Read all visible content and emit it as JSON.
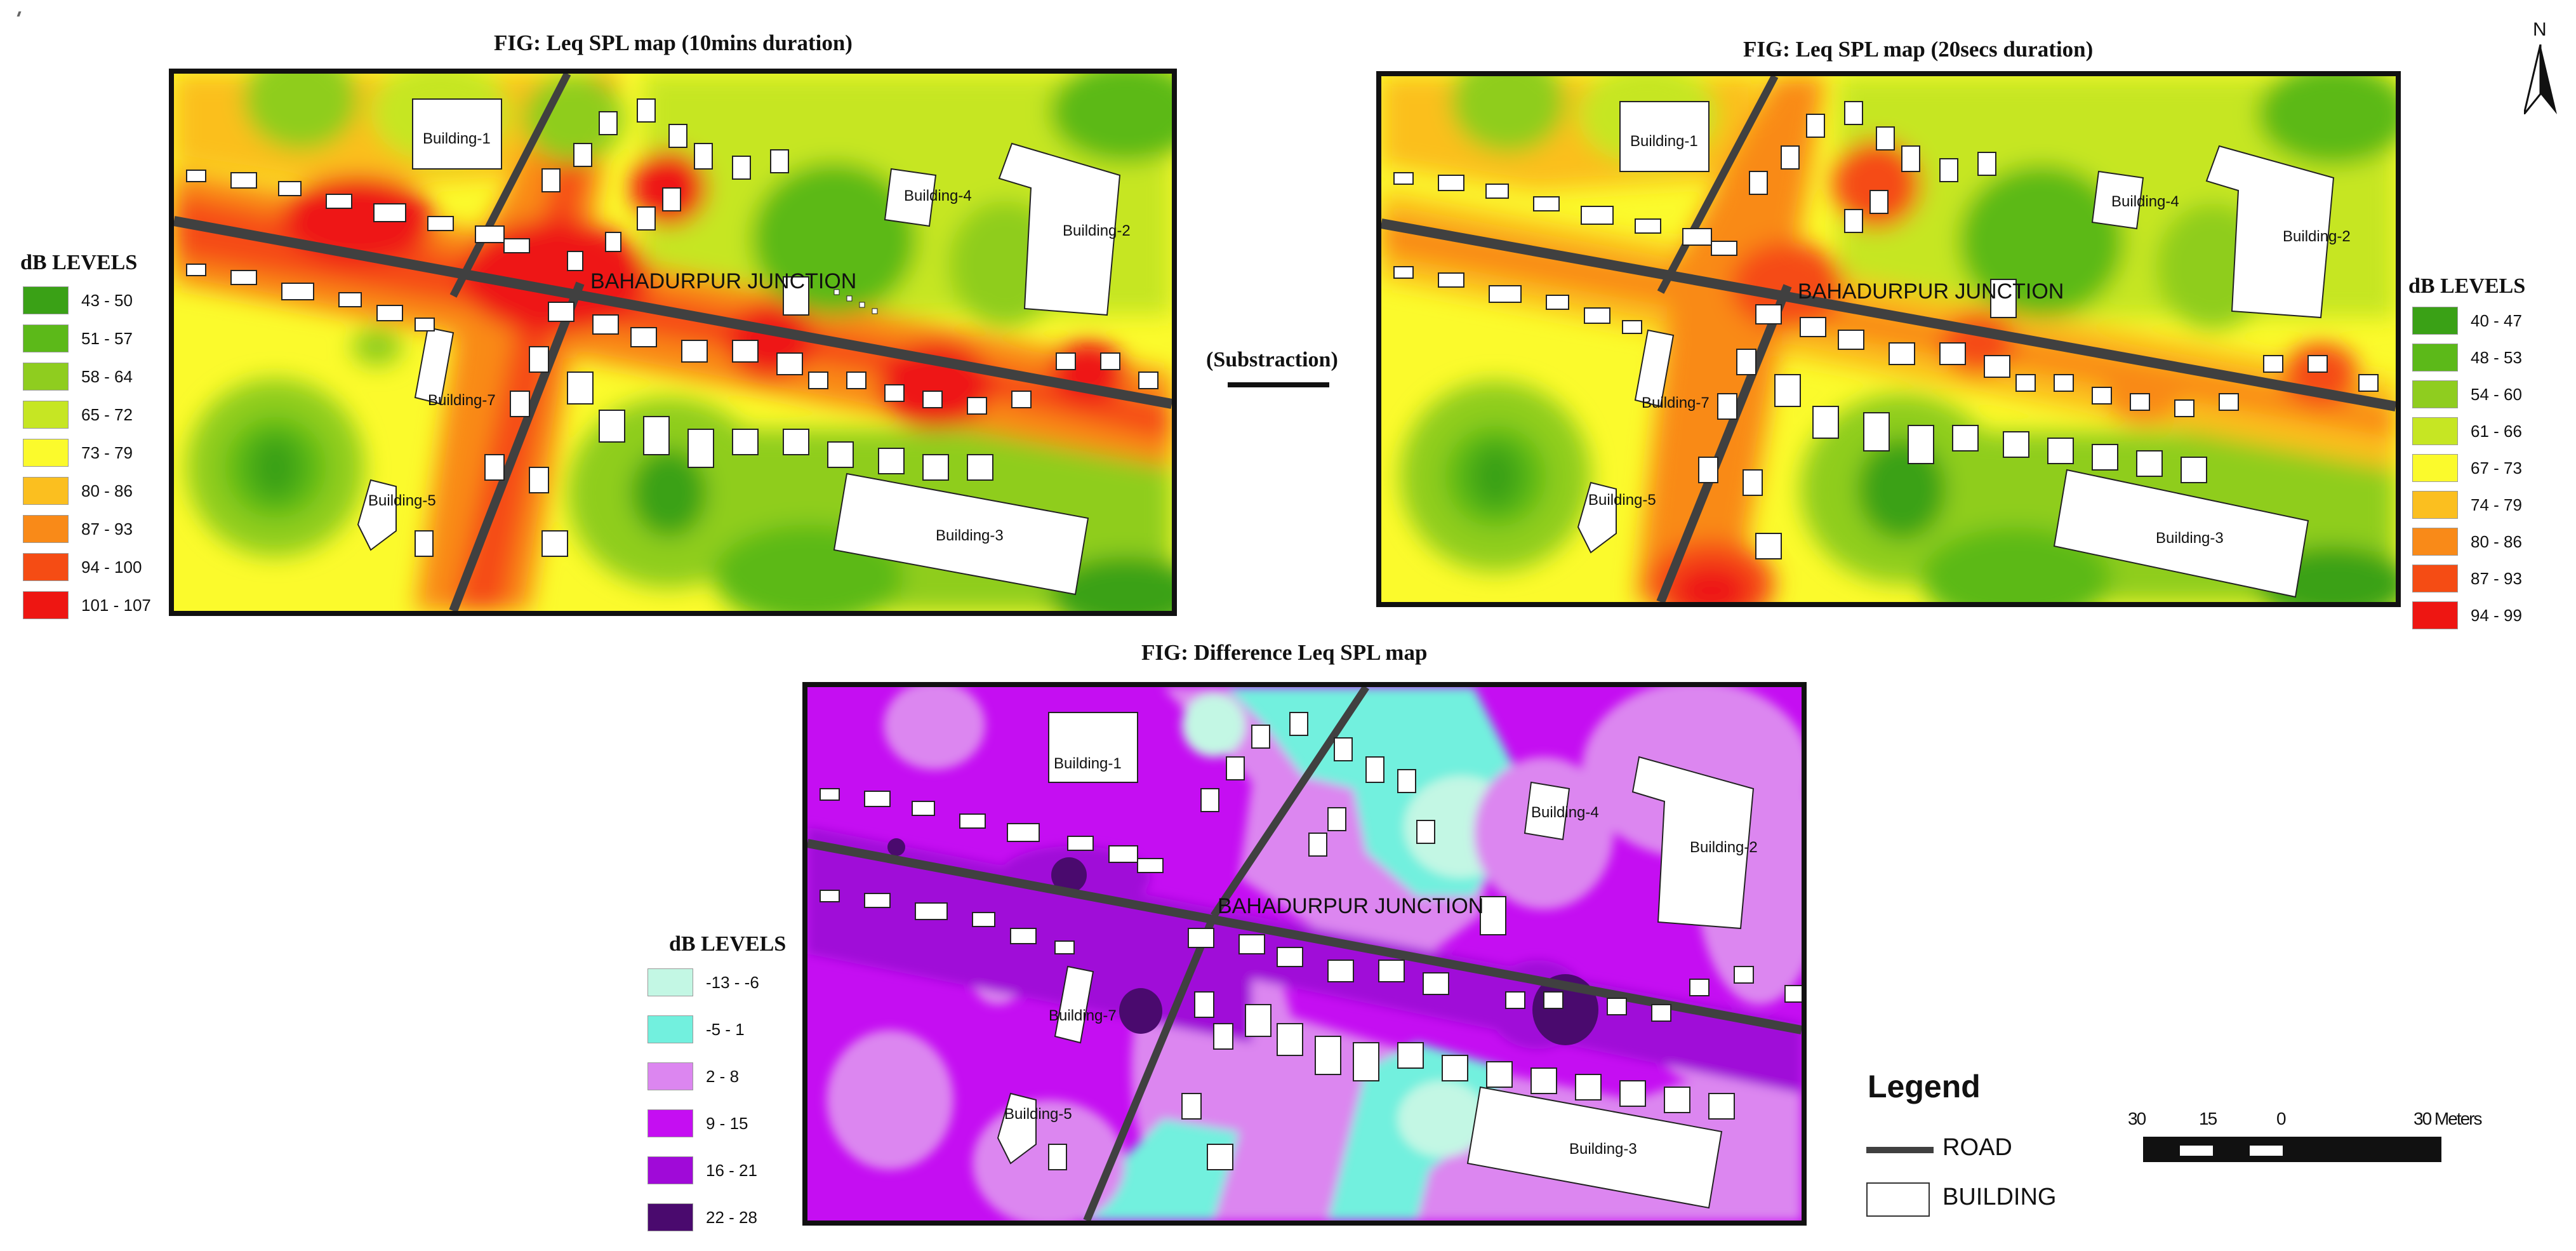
{
  "figures": {
    "map1_title": "FIG: Leq SPL map (10mins duration)",
    "map2_title": "FIG: Leq SPL map (20secs duration)",
    "diff_title": "FIG: Difference Leq SPL map",
    "subtraction_label": "(Substraction)"
  },
  "map_labels": {
    "junction": "BAHADURPUR JUNCTION",
    "building1": "Building-1",
    "building2": "Building-2",
    "building3": "Building-3",
    "building4": "Building-4",
    "building5": "Building-5",
    "building7": "Building-7"
  },
  "legend1": {
    "title": "dB LEVELS",
    "items": [
      {
        "label": "43 - 50",
        "color": "#3aa116"
      },
      {
        "label": "51 - 57",
        "color": "#5cb919"
      },
      {
        "label": "58 - 64",
        "color": "#8fcd1f"
      },
      {
        "label": "65 - 72",
        "color": "#c6e623"
      },
      {
        "label": "73 - 79",
        "color": "#fbfa2c"
      },
      {
        "label": "80 - 86",
        "color": "#fbbf1f"
      },
      {
        "label": "87 - 93",
        "color": "#f98a18"
      },
      {
        "label": "94 - 100",
        "color": "#f54c14"
      },
      {
        "label": "101 - 107",
        "color": "#ee1612"
      }
    ]
  },
  "legend2": {
    "title": "dB LEVELS",
    "items": [
      {
        "label": "40 - 47",
        "color": "#3aa116"
      },
      {
        "label": "48 - 53",
        "color": "#5cb919"
      },
      {
        "label": "54 - 60",
        "color": "#8fcd1f"
      },
      {
        "label": "61 - 66",
        "color": "#c6e623"
      },
      {
        "label": "67 - 73",
        "color": "#fbfa2c"
      },
      {
        "label": "74 - 79",
        "color": "#fbbf1f"
      },
      {
        "label": "80 - 86",
        "color": "#f98a18"
      },
      {
        "label": "87 - 93",
        "color": "#f54c14"
      },
      {
        "label": "94 - 99",
        "color": "#ee1612"
      }
    ]
  },
  "legend3": {
    "title": "dB LEVELS",
    "items": [
      {
        "label": "-13 - -6",
        "color": "#c3f7e4"
      },
      {
        "label": "-5 - 1",
        "color": "#72f0de"
      },
      {
        "label": "2 - 8",
        "color": "#dc86f0"
      },
      {
        "label": "9 - 15",
        "color": "#c50ef2"
      },
      {
        "label": "16 - 21",
        "color": "#a00ad8"
      },
      {
        "label": "22 - 28",
        "color": "#4a0a6e"
      }
    ]
  },
  "legend_main": {
    "title": "Legend",
    "road": "ROAD",
    "building": "BUILDING"
  },
  "scale_bar": {
    "ticks": [
      "30",
      "15",
      "0",
      "30 Meters"
    ]
  },
  "north_arrow": {
    "label": "N",
    "icon": "north-arrow-icon"
  }
}
